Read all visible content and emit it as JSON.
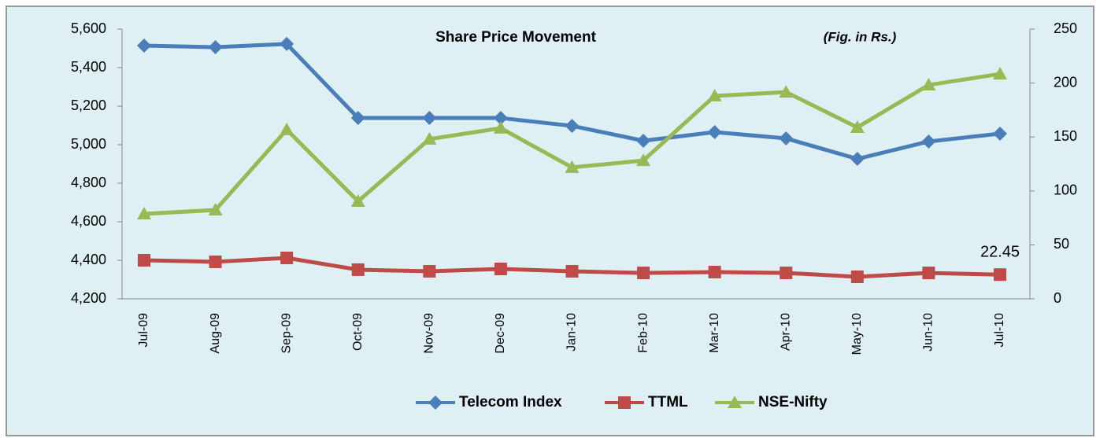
{
  "chart_data": {
    "type": "line",
    "title": "Share Price Movement",
    "annotation": "(Fig. in Rs.)",
    "categories": [
      "Jul-09",
      "Aug-09",
      "Sep-09",
      "Oct-09",
      "Nov-09",
      "Dec-09",
      "Jan-10",
      "Feb-10",
      "Mar-10",
      "Apr-10",
      "May-10",
      "Jun-10",
      "Jul-10"
    ],
    "series": [
      {
        "name": "Telecom Index",
        "color": "#4a7ebb",
        "marker": "diamond",
        "axis": "y2",
        "values": [
          234.7,
          233.2,
          236.2,
          167.6,
          167.6,
          167.6,
          160.3,
          146.5,
          154.5,
          148.7,
          129.7,
          145.8,
          153.1
        ]
      },
      {
        "name": "TTML",
        "color": "#be4b48",
        "marker": "square",
        "axis": "y2",
        "values": [
          35.7,
          34.3,
          37.9,
          27,
          25.5,
          27.7,
          25.5,
          24,
          24.8,
          24,
          20.4,
          24,
          22.45
        ],
        "value_labels": [
          null,
          null,
          null,
          null,
          null,
          null,
          null,
          null,
          null,
          null,
          null,
          null,
          "22.45"
        ]
      },
      {
        "name": "NSE-Nifty",
        "color": "#98b954",
        "marker": "triangle",
        "values": [
          4641,
          4661,
          5078,
          4706,
          5029,
          5086,
          4882,
          4918,
          5253,
          5273,
          5090,
          5310,
          5367
        ]
      }
    ],
    "ylim": [
      4200,
      5600
    ],
    "yticks": [
      {
        "value": 4200,
        "label": "4,200"
      },
      {
        "value": 4400,
        "label": "4,400"
      },
      {
        "value": 4600,
        "label": "4,600"
      },
      {
        "value": 4800,
        "label": "4,800"
      },
      {
        "value": 5000,
        "label": "5,000"
      },
      {
        "value": 5200,
        "label": "5,200"
      },
      {
        "value": 5400,
        "label": "5,400"
      },
      {
        "value": 5600,
        "label": "5,600"
      }
    ],
    "y2lim": [
      0,
      250
    ],
    "y2ticks": [
      0,
      50,
      100,
      150,
      200,
      250
    ],
    "legend": "bottom"
  }
}
